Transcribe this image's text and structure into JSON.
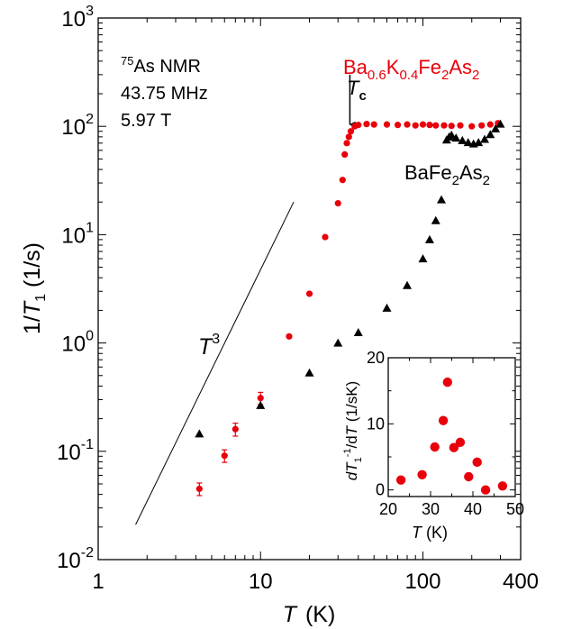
{
  "chart_data": [
    {
      "type": "scatter",
      "xscale": "log",
      "yscale": "log",
      "xlim": [
        1,
        400
      ],
      "ylim": [
        0.01,
        1000
      ],
      "xlabel": "T (K)",
      "ylabel": "1/T1 (1/s)",
      "x_ticks": [
        {
          "v": 1,
          "label": "1"
        },
        {
          "v": 10,
          "label": "10"
        },
        {
          "v": 100,
          "label": "100"
        },
        {
          "v": 400,
          "label": "400"
        }
      ],
      "y_ticks": [
        {
          "v": 0.01,
          "base": "10",
          "exp": "-2"
        },
        {
          "v": 0.1,
          "base": "10",
          "exp": "-1"
        },
        {
          "v": 1,
          "base": "10",
          "exp": "0"
        },
        {
          "v": 10,
          "base": "10",
          "exp": "1"
        },
        {
          "v": 100,
          "base": "10",
          "exp": "2"
        },
        {
          "v": 1000,
          "base": "10",
          "exp": "3"
        }
      ],
      "annotations": {
        "nucleus_sup": "75",
        "nucleus": "As NMR",
        "frequency": "43.75 MHz",
        "field": "5.97 T",
        "tc_label": "T",
        "tc_sub": "c",
        "power_law_label": "T",
        "power_law_exp": "3"
      },
      "power_law_line": {
        "x": [
          1.7,
          16
        ],
        "y": [
          0.021,
          20
        ]
      },
      "tc_arrow": {
        "x": 35.5,
        "y_from": 300,
        "y_to": 100
      },
      "series": [
        {
          "name": "Ba0.6K0.4Fe2As2",
          "label_parts": [
            "Ba",
            "0.6",
            "K",
            "0.4",
            "Fe",
            "2",
            "As",
            "2"
          ],
          "color": "#e8000b",
          "marker": "circle",
          "points": [
            {
              "x": 4.2,
              "y": 0.045,
              "err": 0.006
            },
            {
              "x": 6.0,
              "y": 0.091,
              "err": 0.012
            },
            {
              "x": 7.0,
              "y": 0.16,
              "err": 0.022
            },
            {
              "x": 10.0,
              "y": 0.31,
              "err": 0.04
            },
            {
              "x": 15.0,
              "y": 1.15
            },
            {
              "x": 20.0,
              "y": 2.85
            },
            {
              "x": 25.0,
              "y": 9.5
            },
            {
              "x": 30.0,
              "y": 19.5
            },
            {
              "x": 32.0,
              "y": 32
            },
            {
              "x": 33.0,
              "y": 55
            },
            {
              "x": 34.0,
              "y": 70
            },
            {
              "x": 35.0,
              "y": 80
            },
            {
              "x": 36.0,
              "y": 90
            },
            {
              "x": 38.0,
              "y": 100
            },
            {
              "x": 40.0,
              "y": 103
            },
            {
              "x": 45.0,
              "y": 105
            },
            {
              "x": 50.0,
              "y": 104
            },
            {
              "x": 60.0,
              "y": 104
            },
            {
              "x": 70.0,
              "y": 103
            },
            {
              "x": 80.0,
              "y": 104
            },
            {
              "x": 90.0,
              "y": 102
            },
            {
              "x": 100.0,
              "y": 104
            },
            {
              "x": 110.0,
              "y": 103
            },
            {
              "x": 120.0,
              "y": 102
            },
            {
              "x": 135.0,
              "y": 102
            },
            {
              "x": 150.0,
              "y": 101
            },
            {
              "x": 170.0,
              "y": 102
            },
            {
              "x": 200.0,
              "y": 100
            },
            {
              "x": 230.0,
              "y": 102
            },
            {
              "x": 260.0,
              "y": 104
            },
            {
              "x": 290.0,
              "y": 107
            }
          ]
        },
        {
          "name": "BaFe2As2",
          "label_parts": [
            "BaFe",
            "2",
            "As",
            "2"
          ],
          "color": "#000000",
          "marker": "triangle",
          "points": [
            {
              "x": 4.2,
              "y": 0.145
            },
            {
              "x": 10.0,
              "y": 0.265
            },
            {
              "x": 20.0,
              "y": 0.53
            },
            {
              "x": 30.0,
              "y": 1.0
            },
            {
              "x": 40.0,
              "y": 1.25
            },
            {
              "x": 60.0,
              "y": 2.1
            },
            {
              "x": 80.0,
              "y": 3.4
            },
            {
              "x": 100.0,
              "y": 6.0
            },
            {
              "x": 110.0,
              "y": 9.0
            },
            {
              "x": 120.0,
              "y": 13.5
            },
            {
              "x": 130.0,
              "y": 21
            },
            {
              "x": 140.0,
              "y": 75
            },
            {
              "x": 145.0,
              "y": 80
            },
            {
              "x": 150.0,
              "y": 83
            },
            {
              "x": 160.0,
              "y": 78
            },
            {
              "x": 175.0,
              "y": 74
            },
            {
              "x": 190.0,
              "y": 71
            },
            {
              "x": 205.0,
              "y": 69
            },
            {
              "x": 220.0,
              "y": 71
            },
            {
              "x": 240.0,
              "y": 76
            },
            {
              "x": 260.0,
              "y": 84
            },
            {
              "x": 280.0,
              "y": 95
            },
            {
              "x": 300.0,
              "y": 105
            }
          ]
        }
      ]
    },
    {
      "type": "scatter",
      "role": "inset",
      "xlim": [
        20,
        50
      ],
      "ylim": [
        -1,
        20
      ],
      "x_ticks": [
        20,
        30,
        40,
        50
      ],
      "y_ticks": [
        0,
        10,
        20
      ],
      "xlabel": "T (K)",
      "ylabel": "dT1^-1/dT (1/sK)",
      "color": "#e8000b",
      "marker": "circle",
      "points": [
        {
          "x": 23,
          "y": 1.5
        },
        {
          "x": 28,
          "y": 2.3
        },
        {
          "x": 31,
          "y": 6.5
        },
        {
          "x": 33,
          "y": 10.5
        },
        {
          "x": 34,
          "y": 16.3
        },
        {
          "x": 35.5,
          "y": 6.4
        },
        {
          "x": 37,
          "y": 7.2
        },
        {
          "x": 39,
          "y": 2.0
        },
        {
          "x": 41,
          "y": 4.2
        },
        {
          "x": 43,
          "y": 0.0
        },
        {
          "x": 47,
          "y": 0.6
        }
      ]
    }
  ]
}
